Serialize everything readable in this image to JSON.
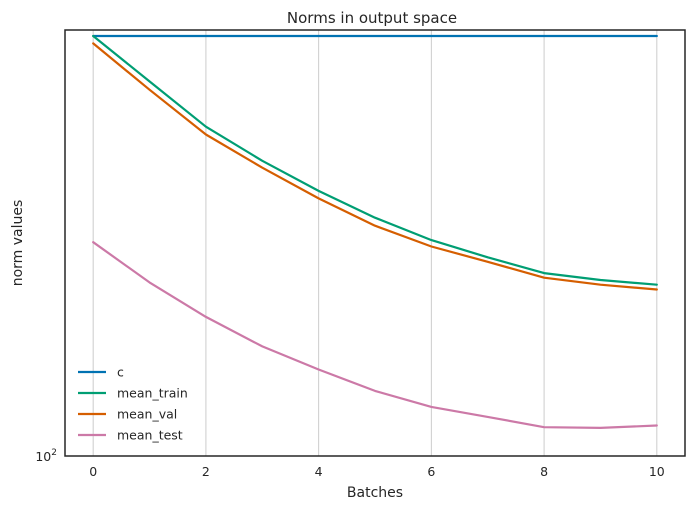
{
  "chart_data": {
    "type": "line",
    "title": "Norms in output space",
    "xlabel": "Batches",
    "ylabel": "norm values",
    "x": [
      0,
      1,
      2,
      3,
      4,
      5,
      6,
      7,
      8,
      9,
      10
    ],
    "xlim": [
      -0.5,
      10.5
    ],
    "xticks": [
      0,
      2,
      4,
      6,
      8,
      10
    ],
    "yscale": "log",
    "ylim": [
      100,
      312
    ],
    "yticks": [
      {
        "value": 100,
        "base": "10",
        "exp": "2"
      }
    ],
    "grid": "x-only",
    "legend": "lower-left",
    "series": [
      {
        "name": "c",
        "color": "#0072B2",
        "values": [
          307,
          307,
          307,
          307,
          307,
          307,
          307,
          307,
          307,
          307,
          307
        ]
      },
      {
        "name": "mean_train",
        "color": "#009E73",
        "values": [
          307,
          272,
          241,
          220,
          203,
          189,
          178,
          170,
          163,
          160,
          158
        ]
      },
      {
        "name": "mean_val",
        "color": "#D55E00",
        "values": [
          301,
          266,
          236,
          216,
          199,
          185,
          175,
          168,
          161,
          158,
          156
        ]
      },
      {
        "name": "mean_test",
        "color": "#CC79A7",
        "values": [
          177,
          159,
          145,
          134,
          126,
          119,
          114,
          111,
          108,
          107.8,
          108.5
        ]
      }
    ]
  }
}
